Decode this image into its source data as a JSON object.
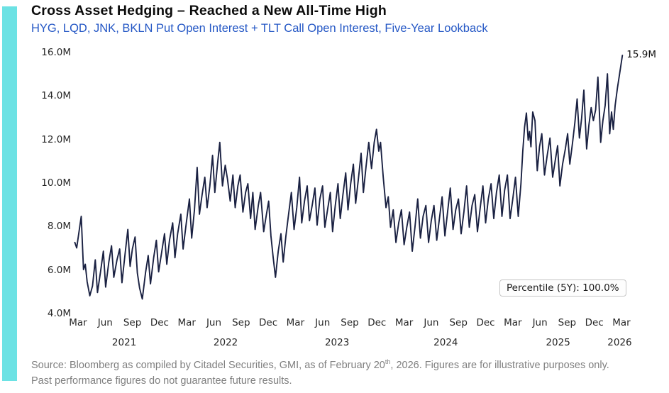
{
  "accent_bar_color": "#6ce2e4",
  "header": {
    "title": "Cross Asset Hedging – Reached a New All-Time High",
    "subtitle": "HYG, LQD, JNK, BKLN Put Open Interest + TLT Call Open Interest, Five-Year Lookback",
    "subtitle_color": "#2457c5"
  },
  "chart_data": {
    "type": "line",
    "series_name": "HYG, LQD, JNK, BKLN put open interest + TLT call open interest",
    "x_unit": "months since Mar 2021",
    "y_unit": "contracts (millions)",
    "ylim": [
      4.0,
      16.0
    ],
    "x_range": [
      "Mar 2021",
      "Mar 2026"
    ],
    "grid": false,
    "legend": "none",
    "line_color": "#1a2142",
    "yticks": [
      {
        "label": "16.0M",
        "value": 16
      },
      {
        "label": "14.0M",
        "value": 14
      },
      {
        "label": "12.0M",
        "value": 12
      },
      {
        "label": "10.0M",
        "value": 10
      },
      {
        "label": "8.0M",
        "value": 8
      },
      {
        "label": "6.0M",
        "value": 6
      },
      {
        "label": "4.0M",
        "value": 4
      }
    ],
    "xticks": [
      {
        "label": "Mar",
        "m": 0
      },
      {
        "label": "Jun",
        "m": 3
      },
      {
        "label": "Sep",
        "m": 6
      },
      {
        "label": "Dec",
        "m": 9
      },
      {
        "label": "Mar",
        "m": 12
      },
      {
        "label": "Jun",
        "m": 15
      },
      {
        "label": "Sep",
        "m": 18
      },
      {
        "label": "Dec",
        "m": 21
      },
      {
        "label": "Mar",
        "m": 24
      },
      {
        "label": "Jun",
        "m": 27
      },
      {
        "label": "Sep",
        "m": 30
      },
      {
        "label": "Dec",
        "m": 33
      },
      {
        "label": "Mar",
        "m": 36
      },
      {
        "label": "Jun",
        "m": 39
      },
      {
        "label": "Sep",
        "m": 42
      },
      {
        "label": "Dec",
        "m": 45
      },
      {
        "label": "Mar",
        "m": 48
      },
      {
        "label": "Jun",
        "m": 51
      },
      {
        "label": "Sep",
        "m": 54
      },
      {
        "label": "Dec",
        "m": 57
      },
      {
        "label": "Mar",
        "m": 60
      }
    ],
    "year_labels": [
      {
        "label": "2021",
        "m": 5.1
      },
      {
        "label": "2022",
        "m": 16.3
      },
      {
        "label": "2023",
        "m": 28.6
      },
      {
        "label": "2024",
        "m": 40.6
      },
      {
        "label": "2025",
        "m": 53.0
      },
      {
        "label": "2026",
        "m": 59.8
      }
    ],
    "end_annotation": {
      "label": "15.9M",
      "value": 15.9
    },
    "percentile_badge": {
      "label": "Percentile (5Y): 100.0%"
    },
    "points": [
      [
        -0.35,
        7.3
      ],
      [
        -0.15,
        7.05
      ],
      [
        0.35,
        8.5
      ],
      [
        0.6,
        6.05
      ],
      [
        0.8,
        6.3
      ],
      [
        1.0,
        5.5
      ],
      [
        1.3,
        4.85
      ],
      [
        1.6,
        5.3
      ],
      [
        1.9,
        6.5
      ],
      [
        2.15,
        5.0
      ],
      [
        2.5,
        6.0
      ],
      [
        2.8,
        6.9
      ],
      [
        3.05,
        5.25
      ],
      [
        3.4,
        6.4
      ],
      [
        3.7,
        7.15
      ],
      [
        3.95,
        5.7
      ],
      [
        4.3,
        6.5
      ],
      [
        4.6,
        7.0
      ],
      [
        4.85,
        5.45
      ],
      [
        5.2,
        6.8
      ],
      [
        5.5,
        7.9
      ],
      [
        5.75,
        6.2
      ],
      [
        6.0,
        7.0
      ],
      [
        6.3,
        7.55
      ],
      [
        6.55,
        5.9
      ],
      [
        6.8,
        5.2
      ],
      [
        7.1,
        4.7
      ],
      [
        7.45,
        5.9
      ],
      [
        7.75,
        6.7
      ],
      [
        8.0,
        5.4
      ],
      [
        8.35,
        6.6
      ],
      [
        8.65,
        7.4
      ],
      [
        8.9,
        5.95
      ],
      [
        9.25,
        6.9
      ],
      [
        9.55,
        7.7
      ],
      [
        9.8,
        6.3
      ],
      [
        10.1,
        7.4
      ],
      [
        10.45,
        8.2
      ],
      [
        10.7,
        6.6
      ],
      [
        11.0,
        7.7
      ],
      [
        11.35,
        8.6
      ],
      [
        11.6,
        7.0
      ],
      [
        11.95,
        8.2
      ],
      [
        12.3,
        9.3
      ],
      [
        12.55,
        7.5
      ],
      [
        12.85,
        8.8
      ],
      [
        13.15,
        10.75
      ],
      [
        13.4,
        8.6
      ],
      [
        13.7,
        9.5
      ],
      [
        14.0,
        10.3
      ],
      [
        14.25,
        8.9
      ],
      [
        14.55,
        9.9
      ],
      [
        14.85,
        11.3
      ],
      [
        15.1,
        9.6
      ],
      [
        15.4,
        10.9
      ],
      [
        15.65,
        11.9
      ],
      [
        15.95,
        9.9
      ],
      [
        16.25,
        10.85
      ],
      [
        16.5,
        10.2
      ],
      [
        16.8,
        9.2
      ],
      [
        17.1,
        10.4
      ],
      [
        17.35,
        8.9
      ],
      [
        17.65,
        9.9
      ],
      [
        17.9,
        10.4
      ],
      [
        18.2,
        8.7
      ],
      [
        18.5,
        9.6
      ],
      [
        18.75,
        10.0
      ],
      [
        19.05,
        8.4
      ],
      [
        19.3,
        9.6
      ],
      [
        19.55,
        7.9
      ],
      [
        19.9,
        9.0
      ],
      [
        20.15,
        9.6
      ],
      [
        20.5,
        7.8
      ],
      [
        20.8,
        8.6
      ],
      [
        21.05,
        9.2
      ],
      [
        21.3,
        7.6
      ],
      [
        21.55,
        6.6
      ],
      [
        21.8,
        5.7
      ],
      [
        22.1,
        6.9
      ],
      [
        22.4,
        7.7
      ],
      [
        22.65,
        6.4
      ],
      [
        22.95,
        7.6
      ],
      [
        23.25,
        8.6
      ],
      [
        23.55,
        9.6
      ],
      [
        23.85,
        7.9
      ],
      [
        24.15,
        8.9
      ],
      [
        24.45,
        10.3
      ],
      [
        24.7,
        8.2
      ],
      [
        25.0,
        9.2
      ],
      [
        25.3,
        9.9
      ],
      [
        25.55,
        8.3
      ],
      [
        25.85,
        9.0
      ],
      [
        26.15,
        9.8
      ],
      [
        26.4,
        8.1
      ],
      [
        26.7,
        9.3
      ],
      [
        27.0,
        9.9
      ],
      [
        27.25,
        8.0
      ],
      [
        27.55,
        8.8
      ],
      [
        27.85,
        9.6
      ],
      [
        28.1,
        7.8
      ],
      [
        28.4,
        9.0
      ],
      [
        28.7,
        10.0
      ],
      [
        28.95,
        8.4
      ],
      [
        29.25,
        9.5
      ],
      [
        29.55,
        10.5
      ],
      [
        29.8,
        8.8
      ],
      [
        30.1,
        10.0
      ],
      [
        30.4,
        10.9
      ],
      [
        30.65,
        9.1
      ],
      [
        30.95,
        10.2
      ],
      [
        31.25,
        11.4
      ],
      [
        31.5,
        9.6
      ],
      [
        31.8,
        10.8
      ],
      [
        32.1,
        11.9
      ],
      [
        32.4,
        10.7
      ],
      [
        32.7,
        11.9
      ],
      [
        32.95,
        12.5
      ],
      [
        33.2,
        11.5
      ],
      [
        33.4,
        11.9
      ],
      [
        33.7,
        10.3
      ],
      [
        34.0,
        8.9
      ],
      [
        34.25,
        9.4
      ],
      [
        34.5,
        8.0
      ],
      [
        34.8,
        8.8
      ],
      [
        35.1,
        7.3
      ],
      [
        35.4,
        8.2
      ],
      [
        35.7,
        8.8
      ],
      [
        36.0,
        7.2
      ],
      [
        36.3,
        8.0
      ],
      [
        36.6,
        8.7
      ],
      [
        36.9,
        6.9
      ],
      [
        37.2,
        8.0
      ],
      [
        37.5,
        9.3
      ],
      [
        37.8,
        7.5
      ],
      [
        38.1,
        8.5
      ],
      [
        38.4,
        9.0
      ],
      [
        38.7,
        7.3
      ],
      [
        39.0,
        8.3
      ],
      [
        39.3,
        9.0
      ],
      [
        39.6,
        7.4
      ],
      [
        39.9,
        8.4
      ],
      [
        40.2,
        9.4
      ],
      [
        40.5,
        7.6
      ],
      [
        40.8,
        8.7
      ],
      [
        41.1,
        9.8
      ],
      [
        41.4,
        7.9
      ],
      [
        41.7,
        8.8
      ],
      [
        42.0,
        9.3
      ],
      [
        42.3,
        7.7
      ],
      [
        42.6,
        8.7
      ],
      [
        42.9,
        9.9
      ],
      [
        43.2,
        8.0
      ],
      [
        43.5,
        9.0
      ],
      [
        43.8,
        9.5
      ],
      [
        44.1,
        7.8
      ],
      [
        44.4,
        8.9
      ],
      [
        44.7,
        9.9
      ],
      [
        45.0,
        8.2
      ],
      [
        45.3,
        9.3
      ],
      [
        45.6,
        10.0
      ],
      [
        45.9,
        8.4
      ],
      [
        46.2,
        9.6
      ],
      [
        46.5,
        10.4
      ],
      [
        46.8,
        8.5
      ],
      [
        47.1,
        9.7
      ],
      [
        47.4,
        10.4
      ],
      [
        47.7,
        8.4
      ],
      [
        48.0,
        9.3
      ],
      [
        48.3,
        10.3
      ],
      [
        48.6,
        8.5
      ],
      [
        48.9,
        10.0
      ],
      [
        49.1,
        11.5
      ],
      [
        49.3,
        12.6
      ],
      [
        49.5,
        13.25
      ],
      [
        49.7,
        12.0
      ],
      [
        49.85,
        12.4
      ],
      [
        50.0,
        11.7
      ],
      [
        50.2,
        13.3
      ],
      [
        50.45,
        12.9
      ],
      [
        50.7,
        10.6
      ],
      [
        50.95,
        11.7
      ],
      [
        51.2,
        12.3
      ],
      [
        51.5,
        10.4
      ],
      [
        51.8,
        11.3
      ],
      [
        52.1,
        12.1
      ],
      [
        52.4,
        10.3
      ],
      [
        52.7,
        11.1
      ],
      [
        52.95,
        11.75
      ],
      [
        53.2,
        9.9
      ],
      [
        53.5,
        10.9
      ],
      [
        53.8,
        11.6
      ],
      [
        54.05,
        12.3
      ],
      [
        54.3,
        10.9
      ],
      [
        54.6,
        11.9
      ],
      [
        54.85,
        12.8
      ],
      [
        55.1,
        13.9
      ],
      [
        55.35,
        12.1
      ],
      [
        55.6,
        13.0
      ],
      [
        55.85,
        14.3
      ],
      [
        56.15,
        11.6
      ],
      [
        56.4,
        12.7
      ],
      [
        56.65,
        13.5
      ],
      [
        56.9,
        12.9
      ],
      [
        57.15,
        13.4
      ],
      [
        57.4,
        14.9
      ],
      [
        57.7,
        11.9
      ],
      [
        57.95,
        12.9
      ],
      [
        58.2,
        13.6
      ],
      [
        58.45,
        15.05
      ],
      [
        58.7,
        12.3
      ],
      [
        58.9,
        13.3
      ],
      [
        59.1,
        12.5
      ],
      [
        59.3,
        13.6
      ],
      [
        59.55,
        14.4
      ],
      [
        59.7,
        14.8
      ],
      [
        60.1,
        15.9
      ]
    ]
  },
  "footer": {
    "line1_prefix": "Source: Bloomberg as compiled by Citadel Securities, GMI, as of February 20",
    "line1_sup": "th",
    "line1_suffix": ", 2026. Figures are for illustrative purposes only.",
    "line2": "Past performance figures do not guarantee future results."
  }
}
